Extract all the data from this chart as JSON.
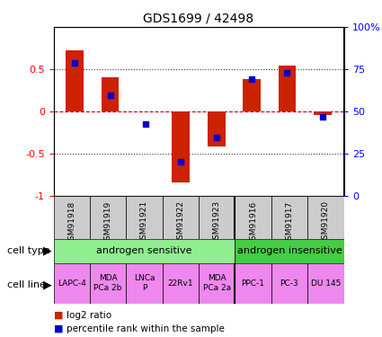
{
  "title": "GDS1699 / 42498",
  "samples": [
    "GSM91918",
    "GSM91919",
    "GSM91921",
    "GSM91922",
    "GSM91923",
    "GSM91916",
    "GSM91917",
    "GSM91920"
  ],
  "log2_ratio": [
    0.72,
    0.4,
    0.0,
    -0.85,
    -0.42,
    0.38,
    0.54,
    -0.05
  ],
  "pct_rank": [
    0.575,
    0.19,
    -0.155,
    -0.595,
    -0.31,
    0.38,
    0.46,
    -0.065
  ],
  "bar_color": "#cc2200",
  "dot_color": "#0000cc",
  "zero_line_color": "#cc0000",
  "cell_type_groups": [
    {
      "label": "androgen sensitive",
      "start": 0,
      "end": 5,
      "color": "#90ee90"
    },
    {
      "label": "androgen insensitive",
      "start": 5,
      "end": 8,
      "color": "#44cc44"
    }
  ],
  "cell_lines": [
    "LAPC-4",
    "MDA\nPCa 2b",
    "LNCa\nP",
    "22Rv1",
    "MDA\nPCa 2a",
    "PPC-1",
    "PC-3",
    "DU 145"
  ],
  "cell_line_color": "#ee88ee",
  "gsm_box_color": "#cccccc",
  "legend_items": [
    {
      "label": "log2 ratio",
      "color": "#cc2200"
    },
    {
      "label": "percentile rank within the sample",
      "color": "#0000cc"
    }
  ],
  "left_label_cell_type": "cell type",
  "left_label_cell_line": "cell line",
  "dotted_line_color": "#333333",
  "background_color": "#ffffff"
}
